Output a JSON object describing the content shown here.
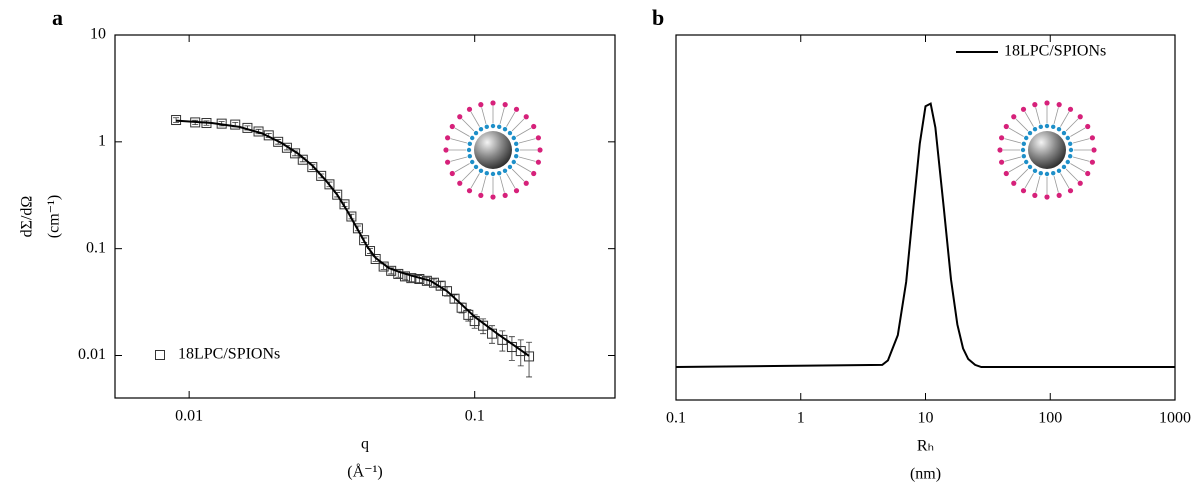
{
  "chart_data": [
    {
      "type": "scatter",
      "panel_label": "a",
      "x_label": "q",
      "x_unit": "(Å⁻¹)",
      "y_label": "dΣ/dΩ",
      "y_unit": "(cm⁻¹)",
      "xscale": "log",
      "yscale": "log",
      "xlim": [
        0.0055,
        0.31
      ],
      "ylim": [
        0.004,
        10
      ],
      "xticks": [
        0.01,
        0.1
      ],
      "yticks": [
        0.01,
        0.1,
        1,
        10
      ],
      "legend": "lower left",
      "series": [
        {
          "name": "18LPC/SPIONs",
          "mode": "markers",
          "color": "#333333",
          "x": [
            0.009,
            0.0105,
            0.0115,
            0.013,
            0.0145,
            0.016,
            0.0175,
            0.019,
            0.0205,
            0.022,
            0.0235,
            0.025,
            0.027,
            0.029,
            0.031,
            0.033,
            0.035,
            0.037,
            0.039,
            0.041,
            0.043,
            0.045,
            0.048,
            0.051,
            0.054,
            0.057,
            0.06,
            0.064,
            0.068,
            0.072,
            0.076,
            0.08,
            0.085,
            0.09,
            0.095,
            0.1,
            0.107,
            0.115,
            0.125,
            0.135,
            0.145,
            0.155
          ],
          "values": [
            1.6,
            1.52,
            1.5,
            1.48,
            1.45,
            1.35,
            1.25,
            1.15,
            1.0,
            0.88,
            0.78,
            0.68,
            0.58,
            0.48,
            0.4,
            0.32,
            0.26,
            0.2,
            0.155,
            0.12,
            0.095,
            0.08,
            0.068,
            0.062,
            0.058,
            0.055,
            0.053,
            0.052,
            0.05,
            0.048,
            0.045,
            0.04,
            0.034,
            0.028,
            0.024,
            0.021,
            0.019,
            0.016,
            0.014,
            0.012,
            0.011,
            0.0098
          ],
          "errors": [
            0.08,
            0.07,
            0.07,
            0.07,
            0.07,
            0.06,
            0.06,
            0.05,
            0.05,
            0.04,
            0.04,
            0.03,
            0.03,
            0.02,
            0.02,
            0.015,
            0.012,
            0.01,
            0.008,
            0.006,
            0.005,
            0.004,
            0.004,
            0.004,
            0.004,
            0.004,
            0.004,
            0.004,
            0.004,
            0.004,
            0.004,
            0.004,
            0.003,
            0.003,
            0.003,
            0.003,
            0.003,
            0.003,
            0.003,
            0.003,
            0.003,
            0.0035
          ]
        },
        {
          "mode": "line",
          "color": "#000000",
          "x": [
            0.009,
            0.012,
            0.015,
            0.018,
            0.021,
            0.024,
            0.027,
            0.03,
            0.033,
            0.036,
            0.039,
            0.042,
            0.045,
            0.05,
            0.055,
            0.06,
            0.07,
            0.08,
            0.09,
            0.1,
            0.12,
            0.14,
            0.155
          ],
          "values": [
            1.58,
            1.5,
            1.38,
            1.2,
            0.98,
            0.78,
            0.6,
            0.44,
            0.32,
            0.22,
            0.15,
            0.105,
            0.082,
            0.066,
            0.06,
            0.056,
            0.05,
            0.04,
            0.03,
            0.023,
            0.016,
            0.012,
            0.0099
          ]
        }
      ]
    },
    {
      "type": "line",
      "panel_label": "b",
      "x_label": "Rₕ",
      "x_unit": "(nm)",
      "xscale": "log",
      "yscale": "linear",
      "xlim": [
        0.1,
        1000
      ],
      "ylim": [
        -0.124,
        1.248
      ],
      "xticks": [
        0.1,
        1,
        10,
        100,
        1000
      ],
      "legend": "upper right",
      "series": [
        {
          "name": "18LPC/SPIONs",
          "mode": "line",
          "color": "#000000",
          "x": [
            0.1,
            4.5,
            5,
            6,
            7,
            8,
            9,
            10,
            11,
            12,
            14,
            16,
            18,
            20,
            22,
            25,
            28,
            1000
          ],
          "values": [
            0,
            0.008,
            0.025,
            0.12,
            0.32,
            0.6,
            0.84,
            0.98,
            0.99,
            0.9,
            0.6,
            0.33,
            0.16,
            0.07,
            0.03,
            0.008,
            0,
            0
          ]
        }
      ]
    }
  ]
}
